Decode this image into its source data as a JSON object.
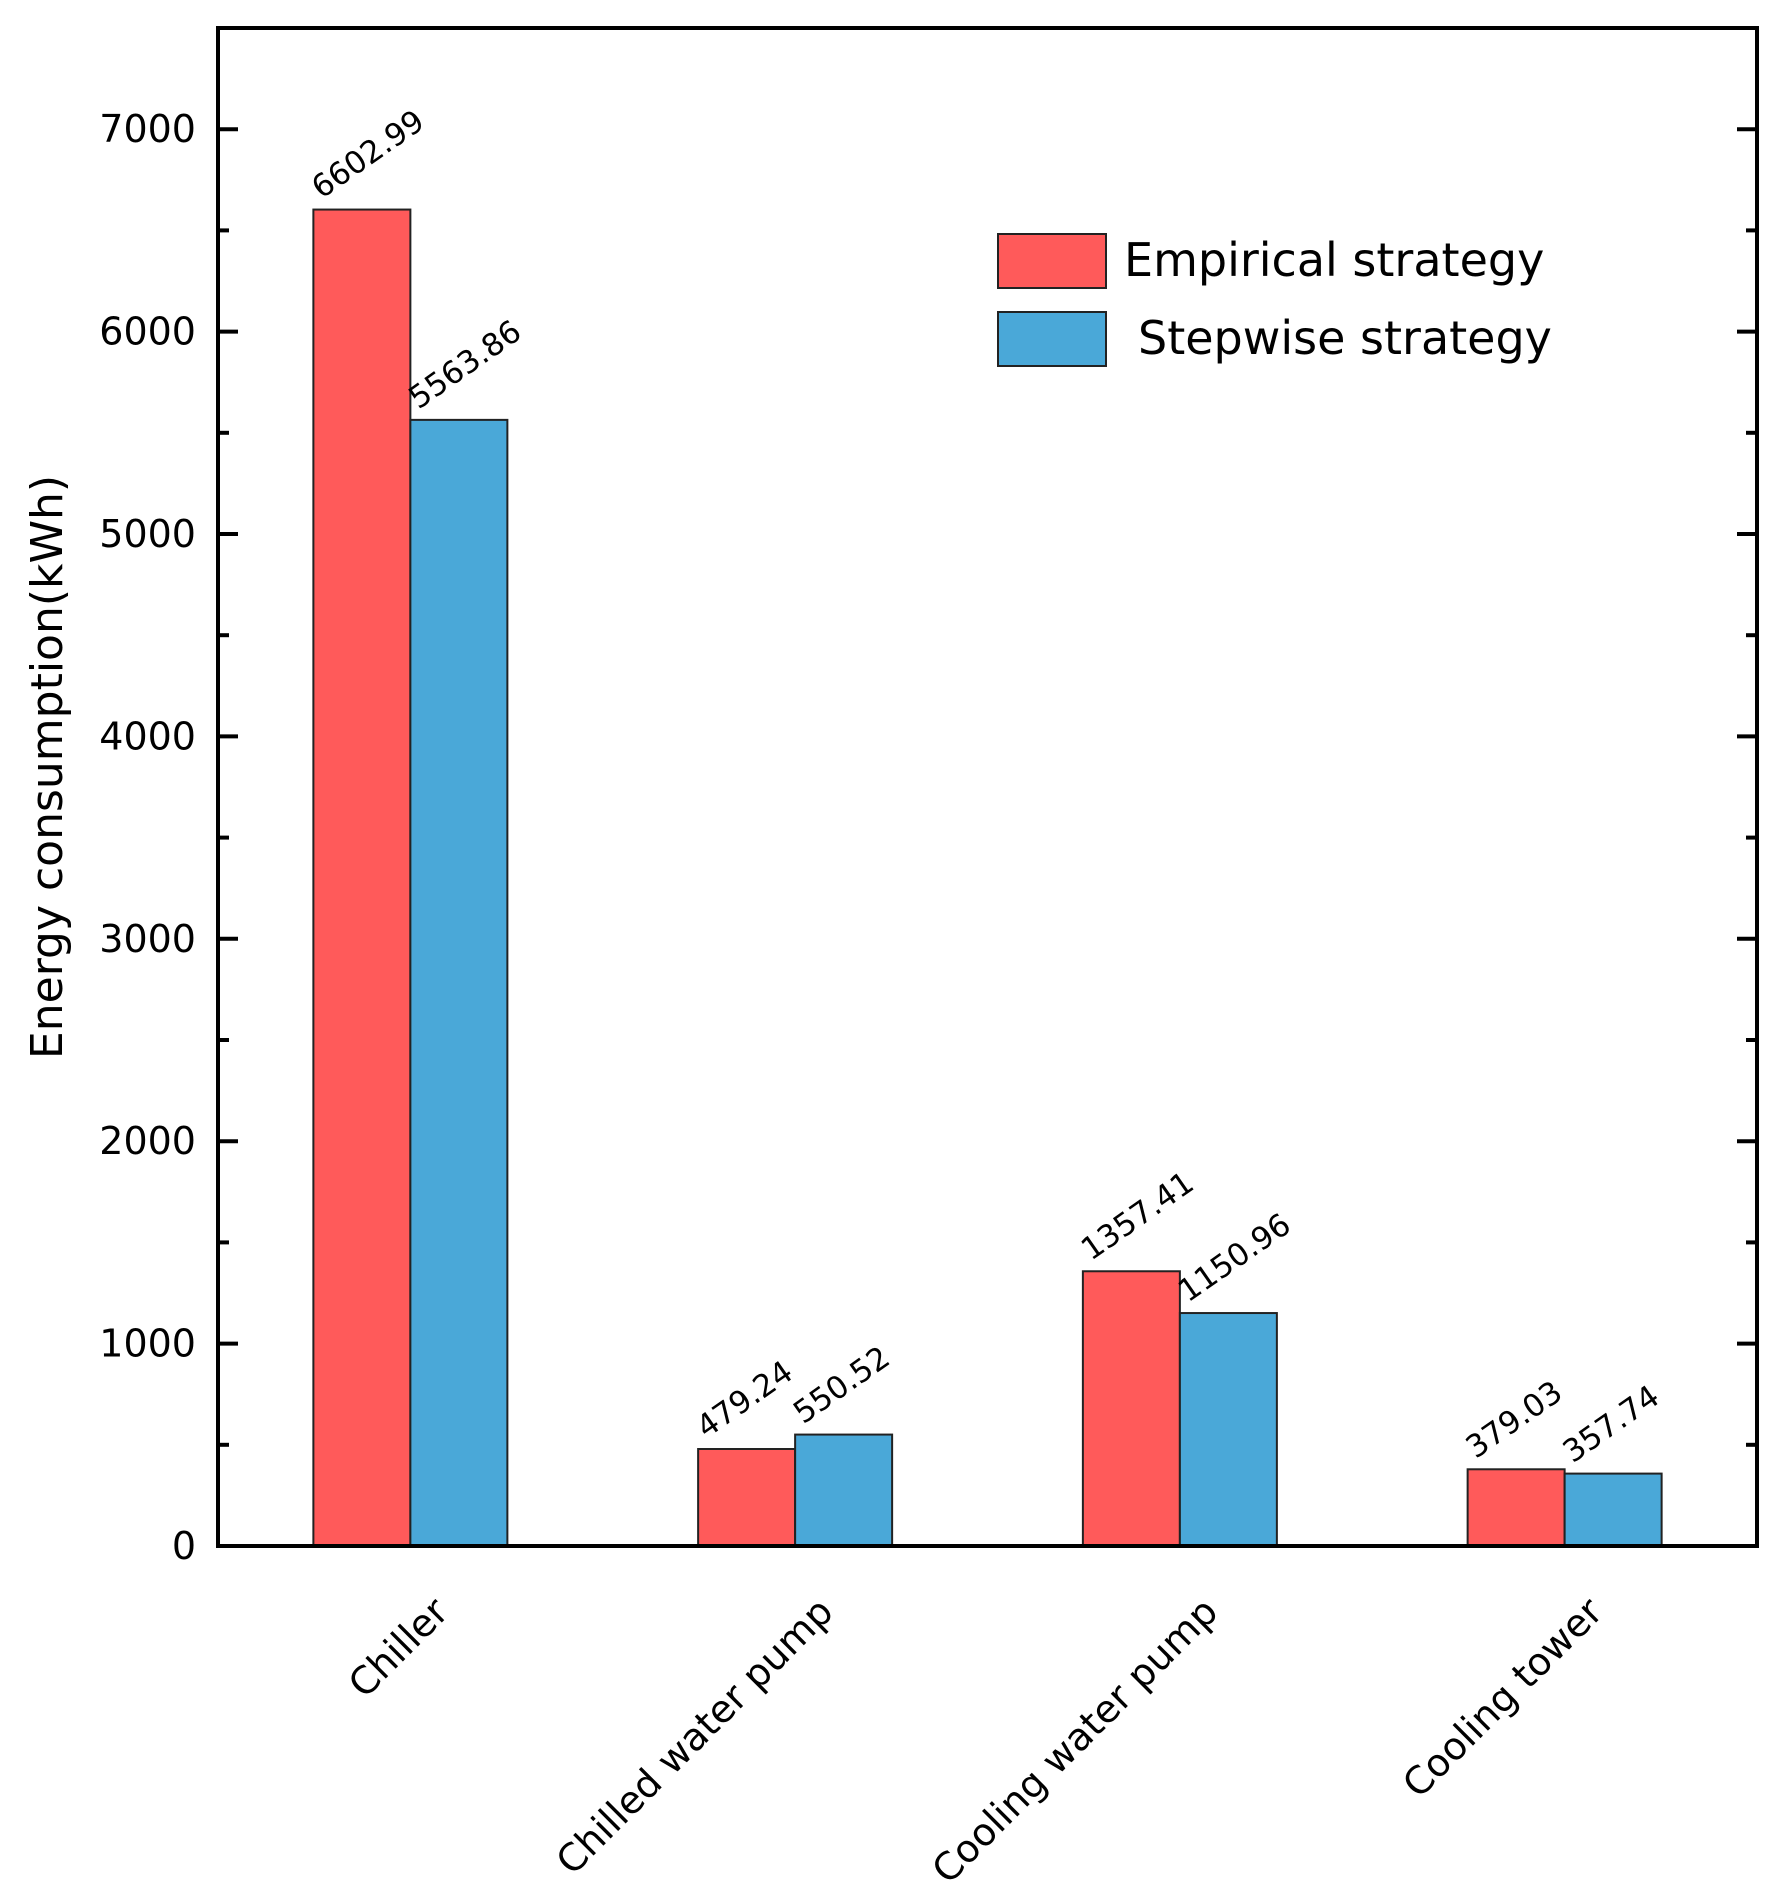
{
  "chart_data": {
    "type": "bar",
    "title": "",
    "xlabel": "",
    "ylabel": "Energy consumption(kWh)",
    "ylim": [
      0,
      7500
    ],
    "yticks": [
      0,
      1000,
      2000,
      3000,
      4000,
      5000,
      6000,
      7000
    ],
    "ytick_labels": [
      "0",
      "1000",
      "2000",
      "3000",
      "4000",
      "5000",
      "6000",
      "7000"
    ],
    "grid": false,
    "legend_position": "top-right",
    "categories": [
      "Chiller",
      "Chilled water pump",
      "Cooling water pump",
      "Cooling tower"
    ],
    "series": [
      {
        "name": "Empirical strategy",
        "color": "#ff5a5a",
        "values": [
          6602.99,
          479.24,
          1357.41,
          379.03
        ],
        "labels": [
          "6602.99",
          "479.24",
          "1357.41",
          "379.03"
        ]
      },
      {
        "name": "Stepwise strategy",
        "color": "#4aa8d8",
        "values": [
          5563.86,
          550.52,
          1150.96,
          357.74
        ],
        "labels": [
          "5563.86",
          "550.52",
          "1150.96",
          "357.74"
        ]
      }
    ]
  }
}
